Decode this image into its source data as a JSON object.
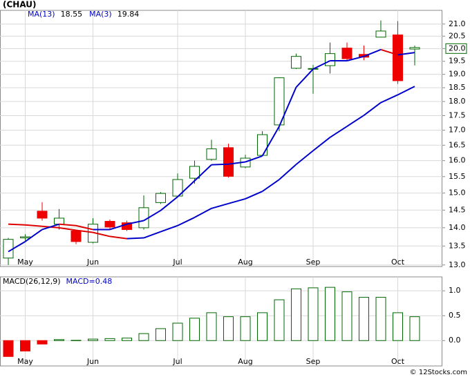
{
  "chart_data": [
    {
      "type": "candlestick",
      "title": "(CHAU)",
      "categories": [
        null,
        "May",
        null,
        null,
        null,
        "Jun",
        null,
        null,
        null,
        null,
        "Jul",
        null,
        null,
        null,
        "Aug",
        null,
        null,
        null,
        "Sep",
        null,
        null,
        null,
        null,
        "Oct",
        null
      ],
      "open": [
        13.18,
        13.72,
        14.47,
        14.1,
        13.91,
        13.6,
        14.18,
        14.14,
        14.0,
        14.72,
        14.91,
        15.45,
        16.04,
        16.42,
        15.8,
        16.17,
        17.18,
        19.23,
        19.2,
        19.33,
        20.02,
        19.77,
        20.46,
        20.55,
        19.98
      ],
      "high": [
        13.72,
        13.82,
        14.73,
        14.53,
        13.95,
        14.27,
        14.23,
        14.2,
        14.93,
        15.03,
        15.6,
        16.0,
        16.68,
        16.55,
        16.19,
        16.97,
        18.89,
        19.8,
        19.36,
        20.24,
        20.24,
        20.12,
        21.15,
        21.12,
        20.12
      ],
      "low": [
        13.0,
        13.65,
        14.2,
        13.95,
        13.55,
        13.57,
        13.95,
        13.91,
        13.95,
        14.68,
        14.89,
        15.28,
        16.0,
        15.47,
        15.76,
        16.15,
        16.97,
        19.2,
        18.28,
        19.03,
        19.54,
        19.54,
        20.46,
        18.64,
        19.34
      ],
      "close": [
        13.68,
        13.75,
        14.27,
        14.27,
        13.62,
        14.1,
        14.02,
        13.95,
        14.57,
        14.99,
        15.41,
        15.82,
        16.38,
        15.51,
        16.08,
        16.85,
        18.87,
        19.69,
        19.22,
        19.8,
        19.6,
        19.66,
        20.71,
        18.76,
        20.04
      ],
      "up_color": "#006600",
      "down_color": "#ee0000",
      "series": [
        {
          "name": "MA(13)",
          "last": 18.55,
          "color": "#0000cc",
          "down_color": "#dd0000",
          "values": [
            14.1,
            14.08,
            14.04,
            14.0,
            13.93,
            13.87,
            13.76,
            13.7,
            13.72,
            13.89,
            14.06,
            14.29,
            14.55,
            14.69,
            14.83,
            15.05,
            15.41,
            15.88,
            16.32,
            16.76,
            17.13,
            17.51,
            17.96,
            18.24,
            18.55
          ]
        },
        {
          "name": "MA(3)",
          "last": 19.84,
          "color": "#0000cc",
          "down_color": "#dd0000",
          "values": [
            13.35,
            13.62,
            13.95,
            14.1,
            14.06,
            13.95,
            13.95,
            14.1,
            14.2,
            14.49,
            14.89,
            15.37,
            15.87,
            15.89,
            15.96,
            16.15,
            17.13,
            18.52,
            19.2,
            19.52,
            19.52,
            19.69,
            19.96,
            19.75,
            19.84
          ]
        }
      ],
      "last_price": {
        "value": 20.0,
        "label": "20.0"
      },
      "log_scale": true,
      "grid": true,
      "ylim": [
        12.96,
        21.58
      ],
      "yticks": [
        {
          "value": 13,
          "label": "13.0"
        },
        {
          "value": 13.5,
          "label": "13.5"
        },
        {
          "value": 14,
          "label": "14.0"
        },
        {
          "value": 14.5,
          "label": "14.5"
        },
        {
          "value": 15,
          "label": "15.0"
        },
        {
          "value": 15.5,
          "label": "15.5"
        },
        {
          "value": 16,
          "label": "16.0"
        },
        {
          "value": 16.5,
          "label": "16.5"
        },
        {
          "value": 17,
          "label": "17.0"
        },
        {
          "value": 17.5,
          "label": "17.5"
        },
        {
          "value": 18,
          "label": "18.0"
        },
        {
          "value": 18.5,
          "label": "18.5"
        },
        {
          "value": 19,
          "label": "19.0"
        },
        {
          "value": 19.5,
          "label": "19.5"
        },
        {
          "value": 20,
          "label": "20.0"
        },
        {
          "value": 20.5,
          "label": "20.5"
        },
        {
          "value": 21,
          "label": "21.0"
        }
      ]
    },
    {
      "type": "bar",
      "title": "MACD(26,12,9)",
      "value_name": "MACD=",
      "last": 0.48,
      "categories": [
        null,
        "May",
        null,
        null,
        null,
        "Jun",
        null,
        null,
        null,
        null,
        "Jul",
        null,
        null,
        null,
        "Aug",
        null,
        null,
        null,
        "Sep",
        null,
        null,
        null,
        null,
        "Oct",
        null
      ],
      "values": [
        -0.32,
        -0.21,
        -0.07,
        0.02,
        0.005,
        0.03,
        0.04,
        0.05,
        0.14,
        0.24,
        0.35,
        0.45,
        0.56,
        0.48,
        0.48,
        0.56,
        0.82,
        1.04,
        1.06,
        1.07,
        0.98,
        0.87,
        0.87,
        0.56,
        0.48
      ],
      "up_color": "#006600",
      "down_color": "#ee0000",
      "grid": true,
      "ylim": [
        -0.51,
        1.28
      ],
      "yticks": [
        {
          "value": 0,
          "label": "0.0"
        },
        {
          "value": 0.5,
          "label": "0.5"
        },
        {
          "value": 1,
          "label": "1.0"
        }
      ]
    }
  ],
  "footer": "© 12Stocks.com"
}
